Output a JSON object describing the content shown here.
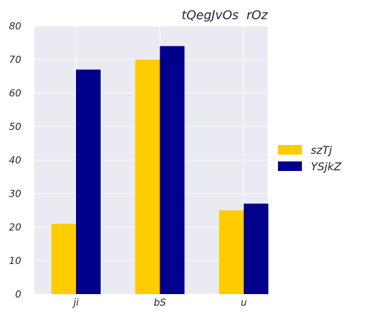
{
  "chart_data": {
    "type": "bar",
    "title": "tQegJvOs  rOz",
    "categories": [
      "ji",
      "bS",
      "u"
    ],
    "series": [
      {
        "name": "szTj",
        "color": "#FFCC00",
        "values": [
          21,
          70,
          25
        ]
      },
      {
        "name": "YSjkZ",
        "color": "#00008B",
        "values": [
          67,
          74,
          27
        ]
      }
    ],
    "ylim": [
      0,
      80
    ],
    "yticks": [
      0,
      10,
      20,
      30,
      40,
      50,
      60,
      70,
      80
    ],
    "grid": true,
    "legend_position": "right"
  }
}
